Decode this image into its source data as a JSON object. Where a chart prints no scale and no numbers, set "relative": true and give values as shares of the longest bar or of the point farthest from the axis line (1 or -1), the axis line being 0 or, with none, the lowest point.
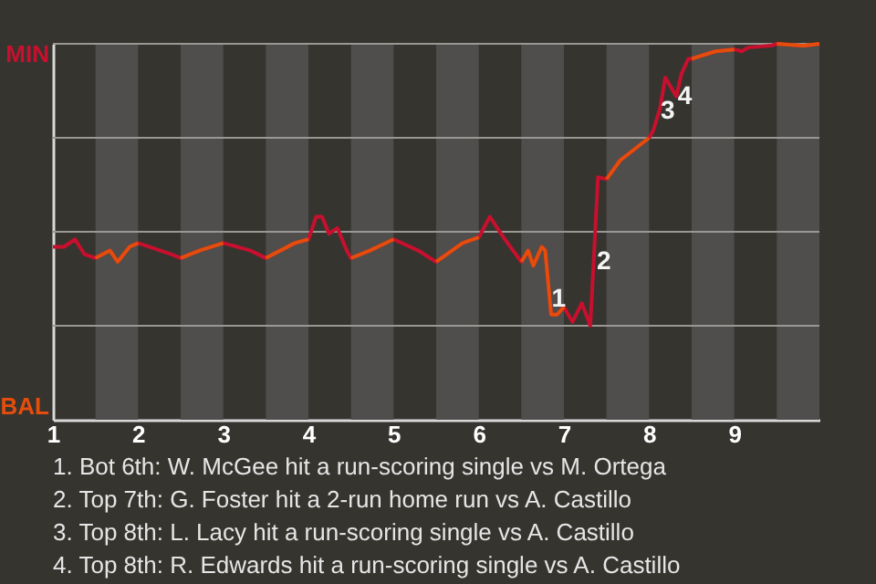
{
  "chart_data": {
    "type": "line",
    "relative": true,
    "xlim": [
      1,
      10
    ],
    "xticks": [
      1,
      2,
      3,
      4,
      5,
      6,
      7,
      8,
      9
    ],
    "grid": "y",
    "series": [
      {
        "color": "#c8102e",
        "x": [
          1.0,
          1.13,
          1.26,
          1.37,
          1.5,
          1.67,
          1.76,
          1.9,
          2.0,
          2.39,
          2.5,
          2.72,
          3.0,
          3.32,
          3.5,
          3.84,
          4.0,
          4.09,
          4.16,
          4.24,
          4.34,
          4.45,
          4.5,
          4.72,
          5.0,
          5.29,
          5.5,
          5.81,
          6.0,
          6.13,
          6.29,
          6.5,
          6.58,
          6.64,
          6.74,
          6.78,
          6.85,
          6.92,
          7.0,
          7.1,
          7.21,
          7.31,
          7.4,
          7.5,
          7.66,
          8.0,
          8.05,
          8.13,
          8.19,
          8.32,
          8.38,
          8.46,
          8.5,
          8.78,
          9.0,
          9.09,
          9.16,
          9.43,
          9.5,
          9.79,
          9.83,
          10.0
        ],
        "values": [
          0.46,
          0.46,
          0.48,
          0.44,
          0.43,
          0.45,
          0.42,
          0.46,
          0.47,
          0.44,
          0.43,
          0.45,
          0.47,
          0.45,
          0.43,
          0.47,
          0.48,
          0.54,
          0.54,
          0.495,
          0.51,
          0.45,
          0.43,
          0.45,
          0.48,
          0.45,
          0.42,
          0.47,
          0.485,
          0.54,
          0.485,
          0.42,
          0.45,
          0.41,
          0.46,
          0.45,
          0.28,
          0.28,
          0.3,
          0.26,
          0.31,
          0.25,
          0.645,
          0.64,
          0.69,
          0.75,
          0.77,
          0.83,
          0.91,
          0.86,
          0.92,
          0.96,
          0.96,
          0.98,
          0.985,
          0.98,
          0.99,
          0.995,
          1,
          0.995,
          0.995,
          1
        ]
      },
      {
        "color": "#e44d0c",
        "x": [
          1.5,
          1.67,
          1.76,
          1.9,
          2.0,
          2.25,
          2.5,
          2.72,
          3.0,
          3.25,
          3.5,
          3.84,
          4.0,
          4.26,
          4.5,
          4.72,
          5.0,
          5.25,
          5.5,
          5.81,
          6.0,
          6.26,
          6.5,
          6.58,
          6.64,
          6.74,
          6.78,
          6.85,
          6.92,
          7.0,
          7.25,
          7.5,
          7.66,
          8.0,
          8.26,
          8.5,
          8.78,
          9.0,
          9.25,
          9.5,
          9.79,
          9.83,
          10.0
        ],
        "values": [
          0.43,
          0.45,
          0.42,
          0.46,
          0.47,
          null,
          0.43,
          0.45,
          0.47,
          null,
          0.43,
          0.47,
          0.48,
          null,
          0.43,
          0.45,
          0.48,
          null,
          0.42,
          0.47,
          0.485,
          null,
          0.42,
          0.45,
          0.41,
          0.46,
          0.45,
          0.28,
          0.28,
          0.3,
          null,
          0.64,
          0.69,
          0.75,
          null,
          0.96,
          0.98,
          0.985,
          null,
          1,
          0.995,
          0.995,
          1
        ]
      }
    ],
    "bands": [
      {
        "axis": "x",
        "from": 1.5,
        "to": 2,
        "color": "#4f4e4c"
      },
      {
        "axis": "x",
        "from": 2.5,
        "to": 3,
        "color": "#4f4e4c"
      },
      {
        "axis": "x",
        "from": 3.5,
        "to": 4,
        "color": "#4f4e4c"
      },
      {
        "axis": "x",
        "from": 4.5,
        "to": 5,
        "color": "#4f4e4c"
      },
      {
        "axis": "x",
        "from": 5.5,
        "to": 6,
        "color": "#4f4e4c"
      },
      {
        "axis": "x",
        "from": 6.5,
        "to": 7,
        "color": "#4f4e4c"
      },
      {
        "axis": "x",
        "from": 7.5,
        "to": 8,
        "color": "#4f4e4c"
      },
      {
        "axis": "x",
        "from": 8.5,
        "to": 9,
        "color": "#4f4e4c"
      },
      {
        "axis": "x",
        "from": 9.5,
        "to": 10,
        "color": "#4f4e4c"
      }
    ],
    "annotations": [
      "MIN",
      "BAL",
      {
        "text": "1",
        "x": 6.94,
        "y": 0.32
      },
      {
        "text": "2",
        "x": 7.47,
        "y": 0.42
      },
      {
        "text": "3",
        "x": 8.22,
        "y": 0.82
      },
      {
        "text": "4",
        "x": 8.42,
        "y": 0.86
      },
      "1. Bot 6th: W. McGee hit a run-scoring single vs M. Ortega",
      "2. Top 7th: G. Foster hit a 2-run home run vs A. Castillo",
      "3. Top 8th: L. Lacy hit a run-scoring single vs A. Castillo",
      "4. Top 8th: R. Edwards hit a run-scoring single vs A. Castillo"
    ]
  }
}
